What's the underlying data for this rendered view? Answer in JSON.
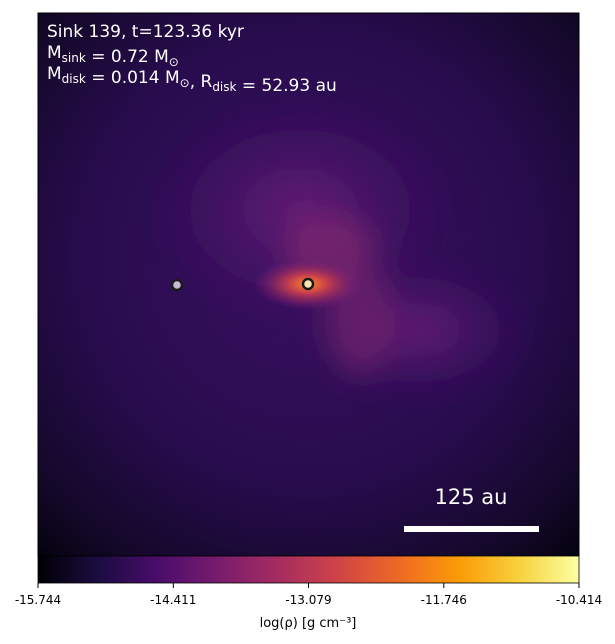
{
  "chart_data": {
    "type": "density-map",
    "annotation_lines": [
      [
        {
          "text": "Sink 139, t=123.36 kyr"
        }
      ],
      [
        {
          "text": "M"
        },
        {
          "sub": "sink"
        },
        {
          "text": " = 0.72 M"
        },
        {
          "sub": "⊙"
        }
      ],
      [
        {
          "text": "M"
        },
        {
          "sub": "disk"
        },
        {
          "text": " = 0.014 M"
        },
        {
          "sub": "⊙"
        },
        {
          "text": ", R"
        },
        {
          "sub": "disk"
        },
        {
          "text": " = 52.93 au"
        }
      ]
    ],
    "scale_bar_label": "125 au",
    "colorbar": {
      "label": "log(ρ) [g cm⁻³]",
      "colormap": "inferno",
      "xlim": [
        -15.744,
        -10.414
      ],
      "xticks": [
        -15.744,
        -14.411,
        -13.079,
        -11.746,
        -10.414
      ]
    }
  }
}
